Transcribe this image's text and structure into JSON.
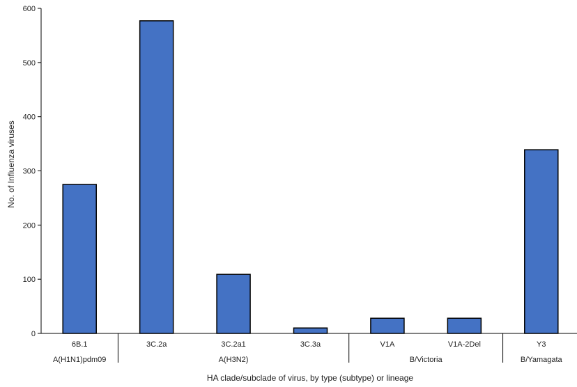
{
  "chart_data": {
    "type": "bar",
    "title": "",
    "xlabel": "HA clade/subclade of virus, by type (subtype) or lineage",
    "ylabel": "No. of Influenza viruses",
    "ylim": [
      0,
      600
    ],
    "yticks": [
      0,
      100,
      200,
      300,
      400,
      500,
      600
    ],
    "grid": false,
    "categories": [
      "6B.1",
      "3C.2a",
      "3C.2a1",
      "3C.3a",
      "V1A",
      "V1A-2Del",
      "Y3"
    ],
    "values": [
      275,
      577,
      109,
      10,
      28,
      28,
      339
    ],
    "groups": [
      {
        "label": "A(H1N1)pdm09",
        "start": 0,
        "end": 0
      },
      {
        "label": "A(H3N2)",
        "start": 1,
        "end": 3
      },
      {
        "label": "B/Victoria",
        "start": 4,
        "end": 5
      },
      {
        "label": "B/Yamagata",
        "start": 6,
        "end": 6
      }
    ],
    "bar_color": "#4472c4",
    "bar_edge_color": "#000000"
  }
}
